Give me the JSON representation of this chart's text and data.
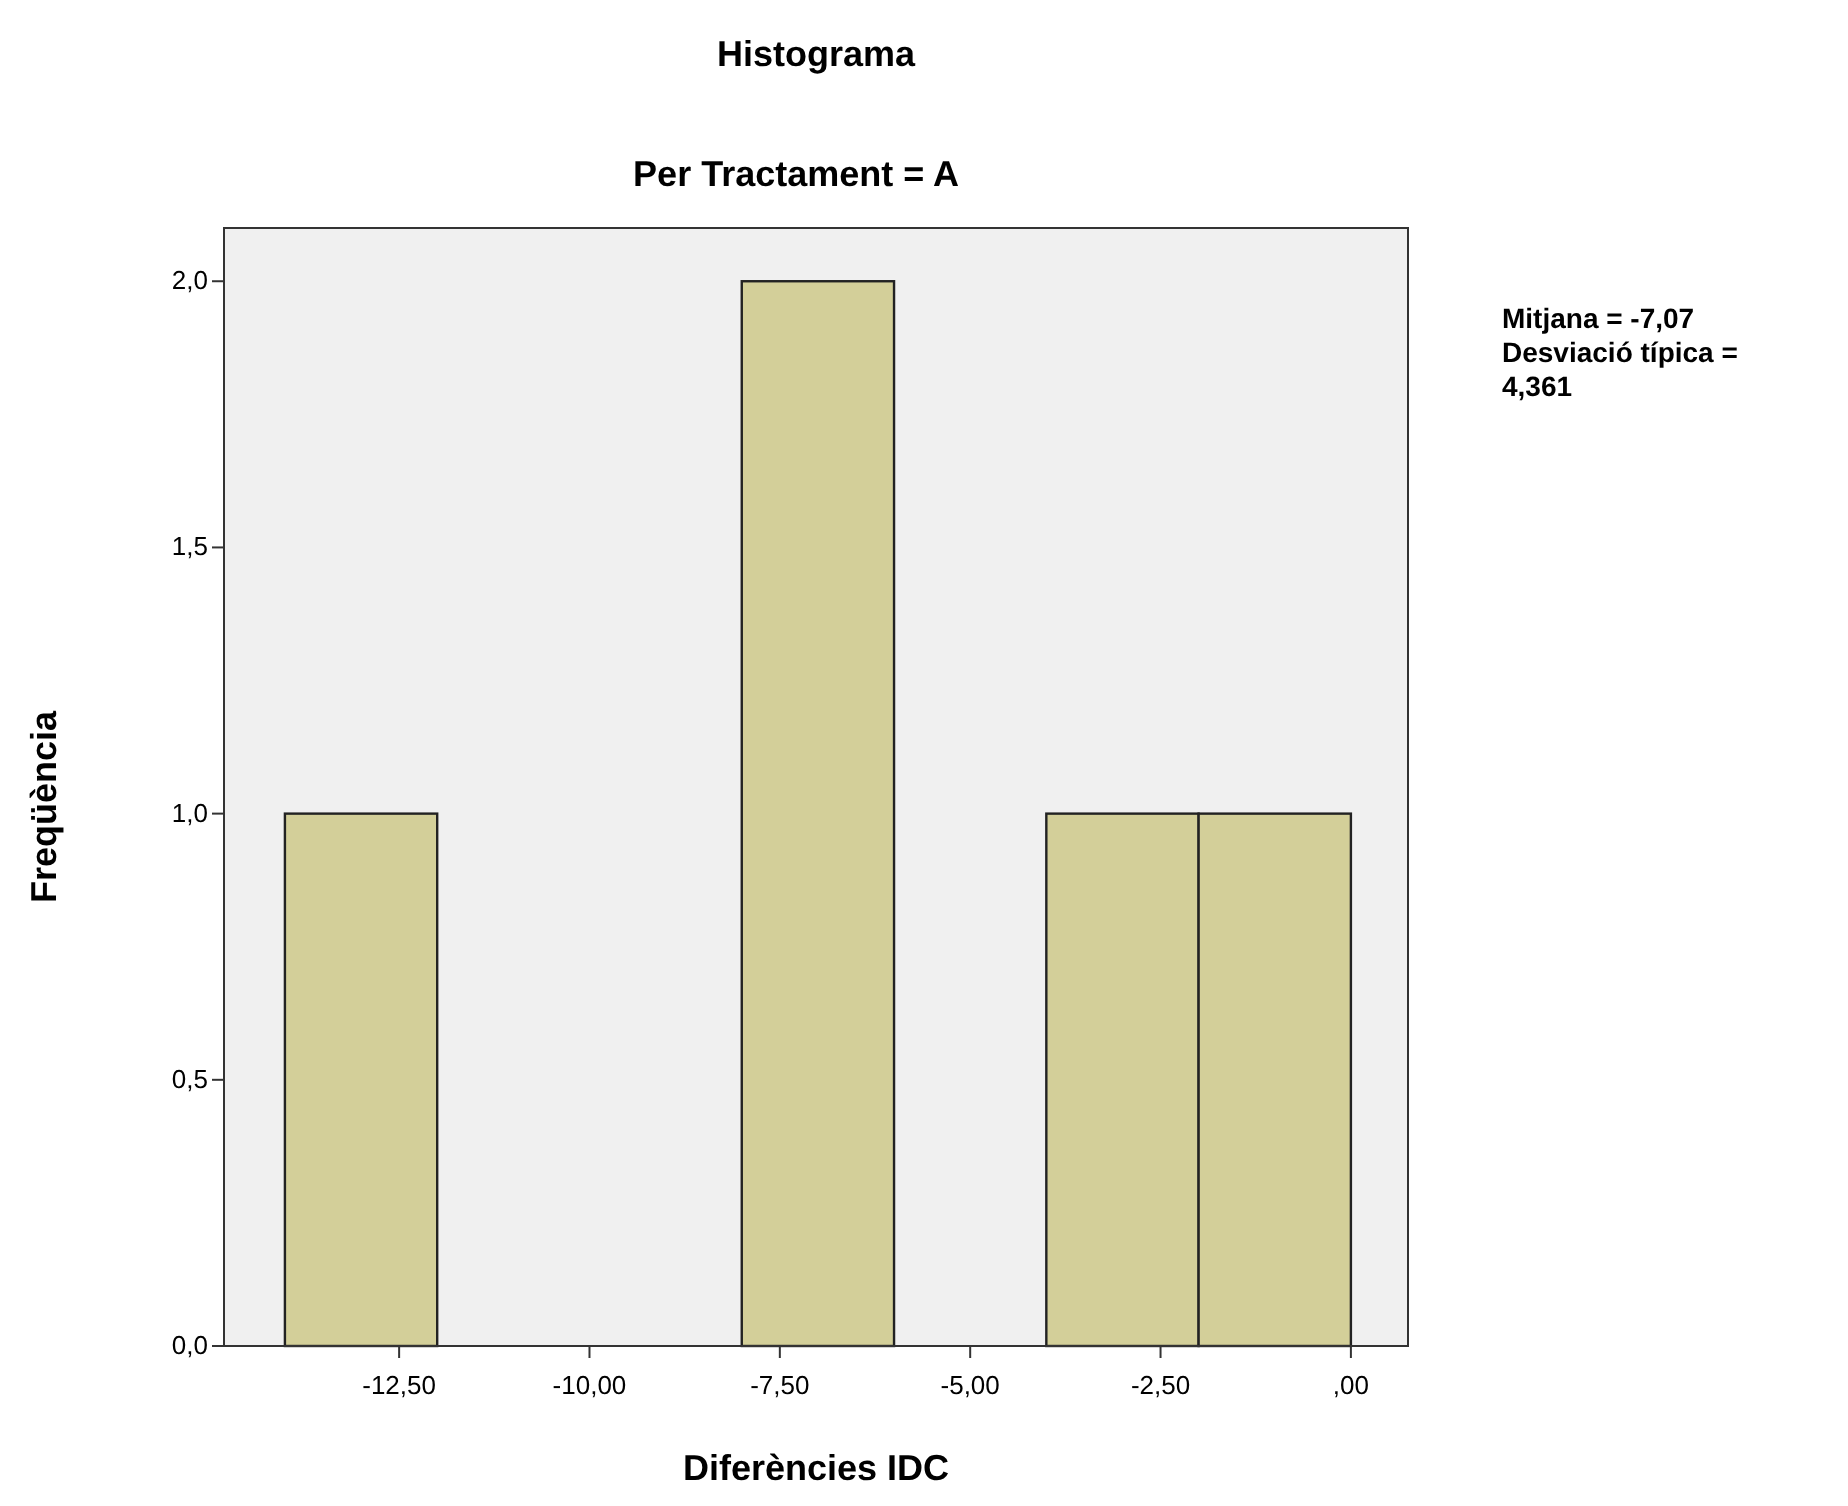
{
  "chart_data": {
    "type": "histogram",
    "title": "Histograma",
    "subtitle": "Per Tractament = A",
    "xlabel": "Diferències IDC",
    "ylabel": "Freqüència",
    "bins": [
      -14,
      -12,
      -10,
      -8,
      -6,
      -4,
      -2,
      0
    ],
    "values": [
      1,
      0,
      0,
      2,
      0,
      1,
      1
    ],
    "color": "#d3cf99",
    "xlim": [
      -14.8,
      0.75
    ],
    "ylim": [
      0,
      2.1
    ],
    "xticks": [
      {
        "value": -12.5,
        "label": "-12,50"
      },
      {
        "value": -10,
        "label": "-10,00"
      },
      {
        "value": -7.5,
        "label": "-7,50"
      },
      {
        "value": -5,
        "label": "-5,00"
      },
      {
        "value": -2.5,
        "label": "-2,50"
      },
      {
        "value": 0,
        "label": ",00"
      }
    ],
    "yticks": [
      {
        "value": 0,
        "label": "0,0"
      },
      {
        "value": 0.5,
        "label": "0,5"
      },
      {
        "value": 1,
        "label": "1,0"
      },
      {
        "value": 1.5,
        "label": "1,5"
      },
      {
        "value": 2,
        "label": "2,0"
      }
    ],
    "annotations": [
      "Mitjana = -7,07",
      "Desviació típica =",
      "4,361"
    ]
  }
}
